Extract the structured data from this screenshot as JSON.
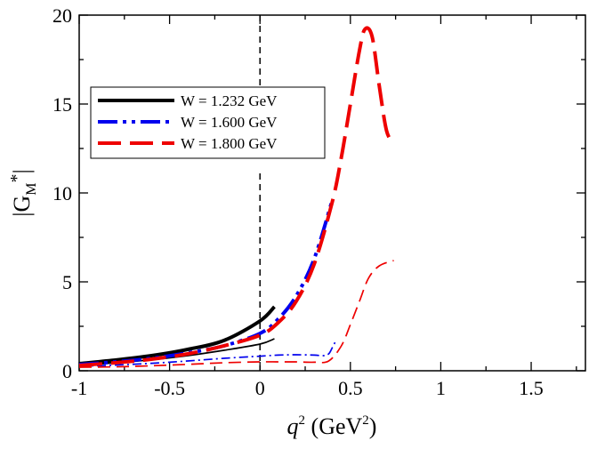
{
  "chart_data": {
    "type": "line",
    "title": "",
    "xlabel": {
      "base": "q",
      "sup": "2",
      "unit_pre": " (GeV",
      "unit_sup": "2",
      "unit_post": ")"
    },
    "ylabel": {
      "pre": "|G",
      "sub": "M",
      "sup": "*",
      "post": "|"
    },
    "xlim": [
      -1,
      1.8
    ],
    "ylim": [
      0,
      20
    ],
    "x_major_ticks": [
      -1,
      -0.5,
      0,
      0.5,
      1,
      1.5
    ],
    "x_tick_labels": [
      "-1",
      "-0.5",
      "0",
      "0.5",
      "1",
      "1.5"
    ],
    "y_major_ticks": [
      0,
      5,
      10,
      15,
      20
    ],
    "y_tick_labels": [
      "0",
      "5",
      "10",
      "15",
      "20"
    ],
    "legend_position": "upper-left",
    "reference_line": {
      "x": 0,
      "style": "dashed",
      "color": "#000000"
    },
    "series": [
      {
        "name": "W = 1.232 GeV",
        "color": "#000000",
        "dash": "solid",
        "width": "thick",
        "x": [
          -1,
          -0.8,
          -0.6,
          -0.4,
          -0.2,
          0,
          0.08
        ],
        "y": [
          0.4,
          0.6,
          0.85,
          1.2,
          1.7,
          2.8,
          3.6
        ]
      },
      {
        "name": "W = 1.232 GeV (thin)",
        "color": "#000000",
        "dash": "solid",
        "width": "thin",
        "legend": false,
        "x": [
          -1,
          -0.8,
          -0.6,
          -0.4,
          -0.2,
          0,
          0.08
        ],
        "y": [
          0.3,
          0.45,
          0.62,
          0.85,
          1.15,
          1.5,
          1.8
        ]
      },
      {
        "name": "W = 1.600 GeV",
        "color": "#0000ee",
        "dash": "dashdotdot",
        "width": "thick",
        "x": [
          -1,
          -0.8,
          -0.6,
          -0.4,
          -0.2,
          0,
          0.1,
          0.2,
          0.3,
          0.4
        ],
        "y": [
          0.35,
          0.5,
          0.7,
          1.0,
          1.4,
          2.1,
          2.9,
          4.2,
          6.3,
          9.6
        ]
      },
      {
        "name": "W = 1.600 GeV (thin)",
        "color": "#0000ee",
        "dash": "dashdot",
        "width": "thin",
        "legend": false,
        "x": [
          -1,
          -0.8,
          -0.6,
          -0.4,
          -0.2,
          0,
          0.1,
          0.2,
          0.3,
          0.35,
          0.38,
          0.4,
          0.42
        ],
        "y": [
          0.25,
          0.32,
          0.42,
          0.55,
          0.7,
          0.82,
          0.88,
          0.9,
          0.88,
          0.85,
          0.95,
          1.3,
          1.7
        ]
      },
      {
        "name": "W = 1.800 GeV",
        "color": "#ee0000",
        "dash": "longdash",
        "width": "thick",
        "x": [
          -1,
          -0.8,
          -0.6,
          -0.4,
          -0.2,
          0,
          0.1,
          0.2,
          0.3,
          0.4,
          0.45,
          0.5,
          0.55,
          0.58,
          0.62,
          0.66,
          0.7,
          0.74
        ],
        "y": [
          0.3,
          0.45,
          0.65,
          0.95,
          1.4,
          2.0,
          2.7,
          3.9,
          6.0,
          9.5,
          12.0,
          15.0,
          18.0,
          19.2,
          18.8,
          16.0,
          13.5,
          12.8
        ]
      },
      {
        "name": "W = 1.800 GeV (thin)",
        "color": "#ee0000",
        "dash": "longdash",
        "width": "thin",
        "legend": false,
        "x": [
          -1,
          -0.8,
          -0.6,
          -0.4,
          -0.2,
          0,
          0.1,
          0.2,
          0.3,
          0.38,
          0.45,
          0.5,
          0.55,
          0.6,
          0.66,
          0.74
        ],
        "y": [
          0.2,
          0.22,
          0.28,
          0.36,
          0.45,
          0.5,
          0.5,
          0.5,
          0.48,
          0.55,
          1.4,
          2.6,
          3.9,
          5.2,
          5.9,
          6.2
        ]
      }
    ]
  }
}
